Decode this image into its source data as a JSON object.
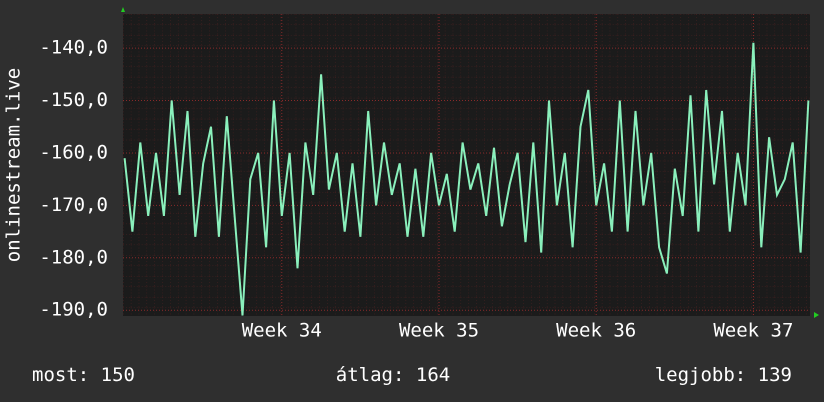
{
  "chart_data": {
    "type": "line",
    "y_label": "onlinestream.live",
    "x": [
      33.0,
      33.05,
      33.1,
      33.15,
      33.2,
      33.25,
      33.3,
      33.35,
      33.4,
      33.45,
      33.5,
      33.55,
      33.6,
      33.65,
      33.7,
      33.75,
      33.8,
      33.85,
      33.9,
      33.95,
      34.0,
      34.05,
      34.1,
      34.15,
      34.2,
      34.25,
      34.3,
      34.35,
      34.4,
      34.45,
      34.5,
      34.55,
      34.6,
      34.65,
      34.7,
      34.75,
      34.8,
      34.85,
      34.9,
      34.95,
      35.0,
      35.05,
      35.1,
      35.15,
      35.2,
      35.25,
      35.3,
      35.35,
      35.4,
      35.45,
      35.5,
      35.55,
      35.6,
      35.65,
      35.7,
      35.75,
      35.8,
      35.85,
      35.9,
      35.95,
      36.0,
      36.05,
      36.1,
      36.15,
      36.2,
      36.25,
      36.3,
      36.35,
      36.4,
      36.45,
      36.5,
      36.55,
      36.6,
      36.65,
      36.7,
      36.75,
      36.8,
      36.85,
      36.9,
      36.95,
      37.0,
      37.05,
      37.1,
      37.15,
      37.2,
      37.25,
      37.3,
      37.35
    ],
    "series": [
      {
        "color": "#8af0bc",
        "values": [
          -161,
          -175,
          -158,
          -172,
          -160,
          -172,
          -150,
          -168,
          -152,
          -176,
          -162,
          -155,
          -176,
          -153,
          -172,
          -191,
          -165,
          -160,
          -178,
          -150,
          -172,
          -160,
          -182,
          -158,
          -168,
          -145,
          -167,
          -160,
          -175,
          -162,
          -176,
          -152,
          -170,
          -158,
          -168,
          -162,
          -176,
          -163,
          -176,
          -160,
          -170,
          -164,
          -175,
          -158,
          -167,
          -162,
          -172,
          -159,
          -174,
          -166,
          -160,
          -177,
          -158,
          -179,
          -150,
          -170,
          -160,
          -178,
          -155,
          -148,
          -170,
          -162,
          -175,
          -150,
          -175,
          -152,
          -170,
          -160,
          -178,
          -183,
          -163,
          -172,
          -149,
          -175,
          -148,
          -166,
          -152,
          -175,
          -160,
          -170,
          -139,
          -178,
          -157,
          -168,
          -165,
          -158,
          -179,
          -150
        ]
      }
    ],
    "xlim": [
      32.99,
      37.36
    ],
    "xticks": [
      {
        "value": 34,
        "label": "Week 34"
      },
      {
        "value": 35,
        "label": "Week 35"
      },
      {
        "value": 36,
        "label": "Week 36"
      },
      {
        "value": 37,
        "label": "Week 37"
      }
    ],
    "ylim": [
      -191.1,
      -133.5
    ],
    "yticks": [
      {
        "value": -190,
        "label": "-190,0"
      },
      {
        "value": -180,
        "label": "-180,0"
      },
      {
        "value": -170,
        "label": "-170,0"
      },
      {
        "value": -160,
        "label": "-160,0"
      },
      {
        "value": -150,
        "label": "-150,0"
      },
      {
        "value": -140,
        "label": "-140,0"
      }
    ],
    "grid": true,
    "stats": [
      {
        "label": "most:",
        "value": 150
      },
      {
        "label": "átlag:",
        "value": 164
      },
      {
        "label": "legjobb:",
        "value": 139
      }
    ]
  }
}
